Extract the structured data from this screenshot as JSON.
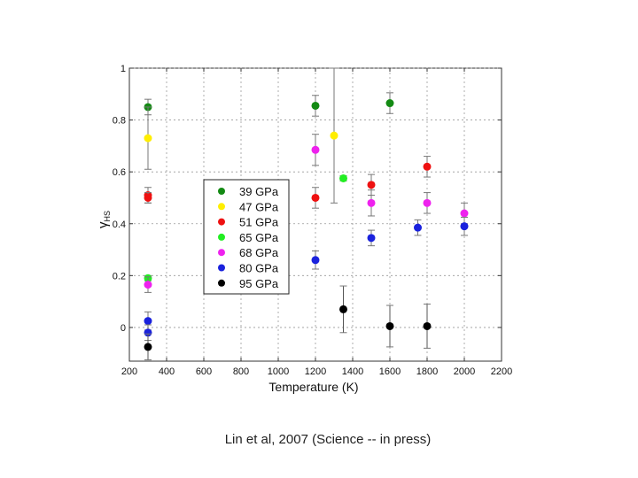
{
  "caption": "Lin et al, 2007 (Science -- in press)",
  "chart_data": {
    "type": "scatter",
    "title": "",
    "xlabel": "Temperature (K)",
    "ylabel": "γHS",
    "xlim": [
      200,
      2200
    ],
    "ylim": [
      -0.13,
      1.0
    ],
    "xticks": [
      "200",
      "400",
      "600",
      "800",
      "1000",
      "1200",
      "1400",
      "1600",
      "1800",
      "2000",
      "2200"
    ],
    "yticks": [
      "0",
      "0.2",
      "0.4",
      "0.6",
      "0.8",
      "1"
    ],
    "grid": true,
    "legend_position": "center-left",
    "series": [
      {
        "name": "39 GPa",
        "color": "#138a13",
        "points": [
          {
            "x": 300,
            "y": 0.85,
            "err": 0.03
          },
          {
            "x": 1200,
            "y": 0.855,
            "err": 0.04
          },
          {
            "x": 1600,
            "y": 0.865,
            "err": 0.04
          }
        ]
      },
      {
        "name": "47 GPa",
        "color": "#ffee00",
        "points": [
          {
            "x": 300,
            "y": 0.73,
            "err": 0.12
          },
          {
            "x": 1300,
            "y": 0.74,
            "err": 0.26
          }
        ]
      },
      {
        "name": "51 GPa",
        "color": "#ee1111",
        "points": [
          {
            "x": 300,
            "y": 0.51,
            "err": 0.03
          },
          {
            "x": 300,
            "y": 0.5,
            "err": 0.02
          },
          {
            "x": 1200,
            "y": 0.5,
            "err": 0.04
          },
          {
            "x": 1500,
            "y": 0.55,
            "err": 0.04
          },
          {
            "x": 1800,
            "y": 0.62,
            "err": 0.04
          }
        ]
      },
      {
        "name": "65 GPa",
        "color": "#22ee22",
        "points": [
          {
            "x": 300,
            "y": 0.19,
            "err": 0.01
          },
          {
            "x": 1350,
            "y": 0.575,
            "err": 0.01
          }
        ]
      },
      {
        "name": "68 GPa",
        "color": "#ee22ee",
        "points": [
          {
            "x": 300,
            "y": 0.165,
            "err": 0.03
          },
          {
            "x": 1200,
            "y": 0.685,
            "err": 0.06
          },
          {
            "x": 1500,
            "y": 0.48,
            "err": 0.05
          },
          {
            "x": 1800,
            "y": 0.48,
            "err": 0.04
          },
          {
            "x": 2000,
            "y": 0.44,
            "err": 0.04
          }
        ]
      },
      {
        "name": "80 GPa",
        "color": "#1a22dd",
        "points": [
          {
            "x": 300,
            "y": 0.025,
            "err": 0.035
          },
          {
            "x": 300,
            "y": -0.02,
            "err": 0.03
          },
          {
            "x": 1200,
            "y": 0.26,
            "err": 0.035
          },
          {
            "x": 1500,
            "y": 0.345,
            "err": 0.03
          },
          {
            "x": 1750,
            "y": 0.385,
            "err": 0.03
          },
          {
            "x": 2000,
            "y": 0.39,
            "err": 0.035
          }
        ]
      },
      {
        "name": "95 GPa",
        "color": "#000000",
        "points": [
          {
            "x": 300,
            "y": -0.075,
            "err": 0.05
          },
          {
            "x": 1350,
            "y": 0.07,
            "err": 0.09
          },
          {
            "x": 1600,
            "y": 0.005,
            "err": 0.08
          },
          {
            "x": 1800,
            "y": 0.005,
            "err": 0.085
          }
        ]
      }
    ]
  }
}
